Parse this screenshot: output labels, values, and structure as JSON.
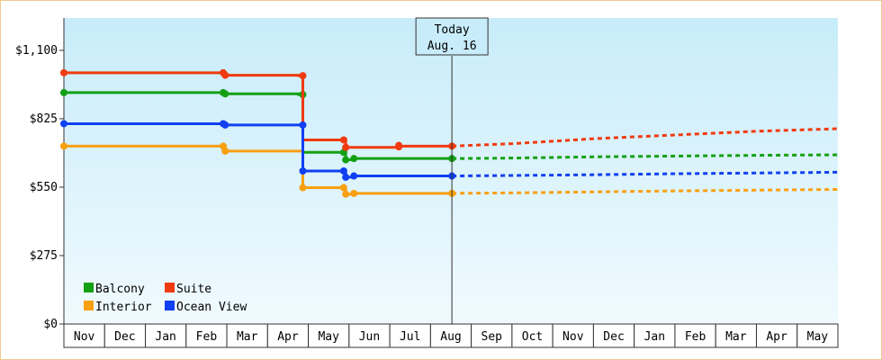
{
  "chart_data": {
    "type": "line",
    "title": "",
    "xlabel": "",
    "ylabel": "",
    "y_ticks": [
      "$0",
      "$275",
      "$550",
      "$825",
      "$1,100"
    ],
    "ylim": [
      0,
      1230
    ],
    "x_ticks": [
      "Nov",
      "Dec",
      "Jan",
      "Feb",
      "Mar",
      "Apr",
      "May",
      "Jun",
      "Jul",
      "Aug",
      "Sep",
      "Oct",
      "Nov",
      "Dec",
      "Jan",
      "Feb",
      "Mar",
      "Apr",
      "May"
    ],
    "xlim": [
      0,
      18.95
    ],
    "grid": false,
    "legend_position": "bottom-left",
    "today": {
      "line1": "Today",
      "line2": "Aug. 16",
      "x": 9.5
    },
    "series": [
      {
        "name": "Balcony",
        "color": "#14a014",
        "points": [
          [
            0,
            930
          ],
          [
            3.9,
            930
          ],
          [
            3.95,
            925
          ],
          [
            5.75,
            922
          ],
          [
            5.85,
            690
          ],
          [
            6.85,
            690
          ],
          [
            6.9,
            660
          ],
          [
            7.1,
            665
          ],
          [
            9.5,
            665
          ]
        ],
        "forecast": [
          [
            9.5,
            665
          ],
          [
            11,
            667
          ],
          [
            13,
            672
          ],
          [
            15,
            675
          ],
          [
            17,
            678
          ],
          [
            18.95,
            680
          ]
        ],
        "markers": [
          [
            0,
            930
          ],
          [
            3.9,
            930
          ],
          [
            3.95,
            925
          ],
          [
            5.85,
            922
          ],
          [
            6.85,
            690
          ],
          [
            6.9,
            660
          ],
          [
            7.1,
            665
          ],
          [
            9.5,
            665
          ]
        ]
      },
      {
        "name": "Suite",
        "color": "#f03a10",
        "points": [
          [
            0,
            1010
          ],
          [
            3.9,
            1010
          ],
          [
            3.95,
            1000
          ],
          [
            5.75,
            998
          ],
          [
            5.85,
            740
          ],
          [
            6.85,
            740
          ],
          [
            6.9,
            710
          ],
          [
            8.2,
            715
          ],
          [
            9.5,
            715
          ]
        ],
        "forecast": [
          [
            9.5,
            715
          ],
          [
            11,
            725
          ],
          [
            13,
            745
          ],
          [
            15,
            760
          ],
          [
            17,
            775
          ],
          [
            18.95,
            785
          ]
        ],
        "markers": [
          [
            0,
            1010
          ],
          [
            3.9,
            1010
          ],
          [
            3.95,
            1000
          ],
          [
            5.85,
            998
          ],
          [
            6.85,
            740
          ],
          [
            6.9,
            710
          ],
          [
            8.2,
            712
          ],
          [
            8.2,
            718
          ],
          [
            9.5,
            715
          ]
        ]
      },
      {
        "name": "Interior",
        "color": "#f8a010",
        "points": [
          [
            0,
            715
          ],
          [
            3.9,
            715
          ],
          [
            3.95,
            695
          ],
          [
            5.75,
            695
          ],
          [
            5.85,
            548
          ],
          [
            6.85,
            548
          ],
          [
            6.9,
            522
          ],
          [
            7.1,
            525
          ],
          [
            9.5,
            525
          ]
        ],
        "forecast": [
          [
            9.5,
            525
          ],
          [
            11,
            527
          ],
          [
            13,
            531
          ],
          [
            15,
            535
          ],
          [
            17,
            538
          ],
          [
            18.95,
            541
          ]
        ],
        "markers": [
          [
            0,
            715
          ],
          [
            3.9,
            715
          ],
          [
            3.95,
            695
          ],
          [
            5.85,
            548
          ],
          [
            6.85,
            548
          ],
          [
            6.9,
            522
          ],
          [
            7.1,
            525
          ],
          [
            9.5,
            525
          ]
        ]
      },
      {
        "name": "Ocean View",
        "color": "#1040f0",
        "points": [
          [
            0,
            805
          ],
          [
            3.9,
            805
          ],
          [
            3.95,
            800
          ],
          [
            5.75,
            800
          ],
          [
            5.85,
            615
          ],
          [
            6.85,
            615
          ],
          [
            6.9,
            590
          ],
          [
            7.1,
            595
          ],
          [
            9.5,
            595
          ]
        ],
        "forecast": [
          [
            9.5,
            595
          ],
          [
            11,
            597
          ],
          [
            13,
            600
          ],
          [
            15,
            604
          ],
          [
            17,
            607
          ],
          [
            18.95,
            610
          ]
        ],
        "markers": [
          [
            0,
            805
          ],
          [
            3.9,
            805
          ],
          [
            3.95,
            800
          ],
          [
            5.85,
            800
          ],
          [
            5.85,
            615
          ],
          [
            6.85,
            615
          ],
          [
            6.9,
            590
          ],
          [
            7.1,
            595
          ],
          [
            9.5,
            595
          ]
        ]
      }
    ]
  }
}
